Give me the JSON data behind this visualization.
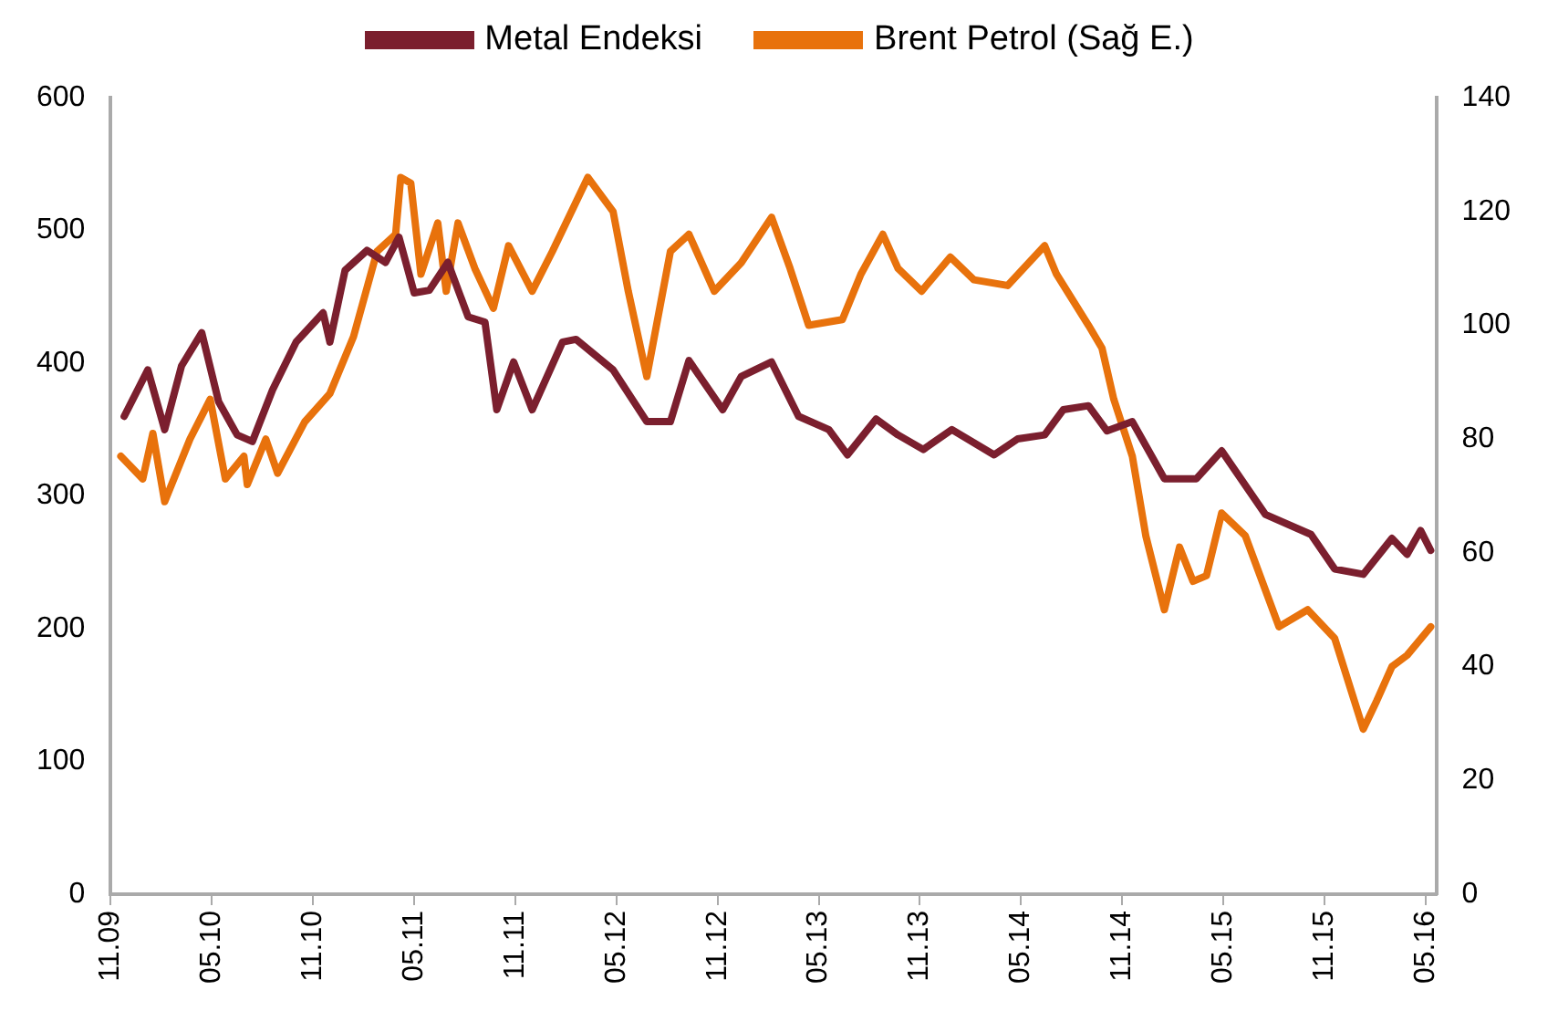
{
  "chart_data": {
    "type": "line",
    "legend": "top",
    "grid": false,
    "marker": "none",
    "line_style": "solid",
    "xlim": [
      "2009-11",
      "2016-05-20"
    ],
    "xticks": [
      {
        "value": "2009-11",
        "label": "11.09"
      },
      {
        "value": "2010-05",
        "label": "05.10"
      },
      {
        "value": "2010-11",
        "label": "11.10"
      },
      {
        "value": "2011-05",
        "label": "05.11"
      },
      {
        "value": "2011-11",
        "label": "11.11"
      },
      {
        "value": "2012-05",
        "label": "05.12"
      },
      {
        "value": "2012-11",
        "label": "11.12"
      },
      {
        "value": "2013-05",
        "label": "05.13"
      },
      {
        "value": "2013-11",
        "label": "11.13"
      },
      {
        "value": "2014-05",
        "label": "05.14"
      },
      {
        "value": "2014-11",
        "label": "11.14"
      },
      {
        "value": "2015-05",
        "label": "05.15"
      },
      {
        "value": "2015-11",
        "label": "11.15"
      },
      {
        "value": "2016-05",
        "label": "05.16"
      }
    ],
    "ylim": [
      0,
      600
    ],
    "yticks": [
      0,
      100,
      200,
      300,
      400,
      500,
      600
    ],
    "y2lim": [
      0,
      140
    ],
    "y2ticks": [
      0,
      20,
      40,
      60,
      80,
      100,
      120,
      140
    ],
    "series": [
      {
        "name": "Metal Endeksi",
        "color": "#7b1f2e",
        "x": [
          "2009-11-25",
          "2010-01-07",
          "2010-02-07",
          "2010-03-07",
          "2010-04-13",
          "2010-05-13",
          "2010-06-16",
          "2010-07-13",
          "2010-08-19",
          "2010-10-01",
          "2010-11-19",
          "2010-12-01",
          "2010-12-28",
          "2011-02-07",
          "2011-03-10",
          "2011-04-04",
          "2011-05-01",
          "2011-05-28",
          "2011-07-01",
          "2011-08-07",
          "2011-09-07",
          "2011-09-28",
          "2011-10-28",
          "2011-12-01",
          "2012-01-25",
          "2012-02-19",
          "2012-04-25",
          "2012-06-25",
          "2012-08-07",
          "2012-09-10",
          "2012-11-10",
          "2012-12-13",
          "2013-02-07",
          "2013-03-25",
          "2013-05-19",
          "2013-06-22",
          "2013-08-13",
          "2013-09-22",
          "2013-11-07",
          "2013-12-28",
          "2014-03-13",
          "2014-04-25",
          "2014-06-13",
          "2014-07-16",
          "2014-09-01",
          "2014-10-04",
          "2014-11-19",
          "2015-01-16",
          "2015-03-13",
          "2015-04-28",
          "2015-07-16",
          "2015-10-07",
          "2015-11-19",
          "2016-01-10",
          "2016-03-01",
          "2016-03-28",
          "2016-04-22",
          "2016-05-10"
        ],
        "values": [
          360,
          395,
          350,
          398,
          423,
          371,
          346,
          341,
          380,
          416,
          438,
          416,
          470,
          485,
          476,
          495,
          453,
          455,
          476,
          435,
          431,
          365,
          401,
          365,
          416,
          418,
          395,
          356,
          356,
          402,
          365,
          390,
          401,
          360,
          350,
          331,
          358,
          346,
          335,
          350,
          331,
          343,
          346,
          365,
          368,
          349,
          356,
          313,
          313,
          334,
          286,
          271,
          245,
          241,
          268,
          256,
          274,
          259
        ]
      },
      {
        "name": "Brent Petrol (Sağ E.)",
        "color": "#e8720c",
        "axis": "y2",
        "x": [
          "2009-11-19",
          "2009-12-28",
          "2010-01-16",
          "2010-02-07",
          "2010-03-22",
          "2010-04-28",
          "2010-05-25",
          "2010-06-28",
          "2010-07-04",
          "2010-08-07",
          "2010-08-28",
          "2010-10-16",
          "2010-12-01",
          "2011-01-13",
          "2011-02-25",
          "2011-03-28",
          "2011-04-07",
          "2011-04-25",
          "2011-05-13",
          "2011-06-13",
          "2011-06-28",
          "2011-07-19",
          "2011-08-19",
          "2011-09-22",
          "2011-10-19",
          "2011-12-01",
          "2012-01-07",
          "2012-03-10",
          "2012-04-25",
          "2012-05-22",
          "2012-06-25",
          "2012-08-07",
          "2012-09-10",
          "2012-10-25",
          "2012-12-13",
          "2013-02-07",
          "2013-03-10",
          "2013-04-13",
          "2013-06-13",
          "2013-07-16",
          "2013-08-25",
          "2013-09-22",
          "2013-11-04",
          "2013-12-25",
          "2014-02-07",
          "2014-04-07",
          "2014-06-13",
          "2014-07-04",
          "2014-09-01",
          "2014-09-25",
          "2014-10-16",
          "2014-11-19",
          "2014-12-13",
          "2015-01-16",
          "2015-02-13",
          "2015-03-07",
          "2015-04-01",
          "2015-04-28",
          "2015-06-10",
          "2015-08-10",
          "2015-10-01",
          "2015-11-19",
          "2016-01-10",
          "2016-02-04",
          "2016-03-01",
          "2016-03-28",
          "2016-05-10"
        ],
        "values": [
          77,
          73,
          81,
          69,
          80,
          87,
          73,
          77,
          72,
          80,
          74,
          83,
          88,
          98,
          113,
          116,
          126,
          125,
          109,
          118,
          106,
          118,
          110,
          103,
          114,
          106,
          113,
          126,
          120,
          106,
          91,
          113,
          116,
          106,
          111,
          119,
          110,
          100,
          101,
          109,
          116,
          110,
          106,
          112,
          108,
          107,
          114,
          109,
          100,
          96,
          87,
          77,
          63,
          50,
          61,
          55,
          56,
          67,
          63,
          47,
          50,
          45,
          29,
          34,
          40,
          42,
          47
        ]
      }
    ]
  }
}
